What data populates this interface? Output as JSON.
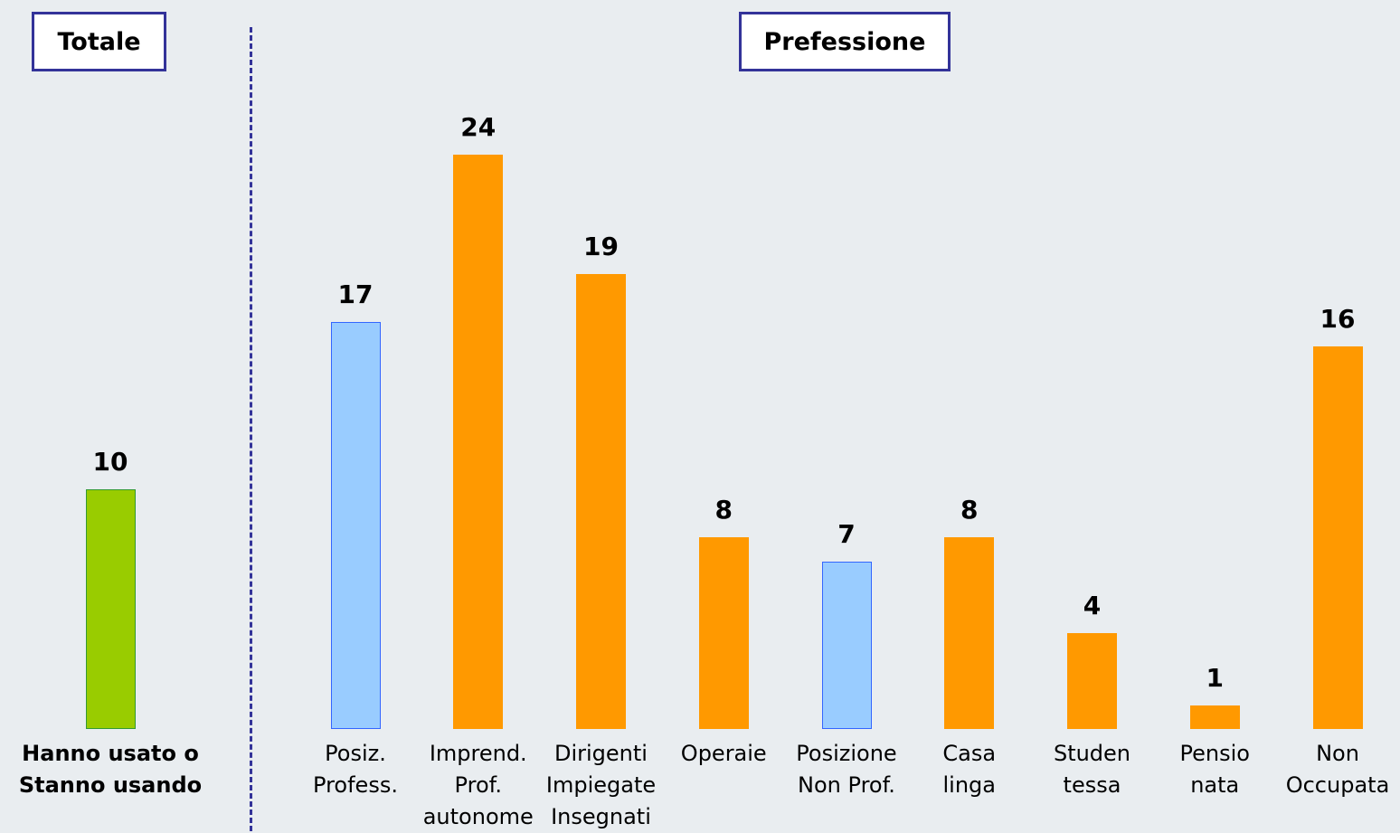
{
  "chart_data": [
    {
      "type": "bar",
      "title": "Totale",
      "categories": [
        "Hanno usato o\nStanno usando"
      ],
      "values": [
        10
      ],
      "colors": [
        "#99cc00"
      ],
      "border_colors": [
        "#339933"
      ]
    },
    {
      "type": "bar",
      "title": "Prefessione",
      "categories": [
        "Posiz.\nProfess.",
        "Imprend.\nProf.\nautonome",
        "Dirigenti\nImpiegate\nInsegnati",
        "Operaie",
        "Posizione\nNon Prof.",
        "Casa\nlinga",
        "Studen\ntessa",
        "Pensio\nnata",
        "Non\nOccupata"
      ],
      "values": [
        17,
        24,
        19,
        8,
        7,
        8,
        4,
        1,
        16
      ],
      "colors": [
        "#99ccff",
        "#ff9900",
        "#ff9900",
        "#ff9900",
        "#99ccff",
        "#ff9900",
        "#ff9900",
        "#ff9900",
        "#ff9900"
      ],
      "border_colors": [
        "#3366ff",
        "#ff9900",
        "#ff9900",
        "#ff9900",
        "#3366ff",
        "#ff9900",
        "#ff9900",
        "#ff9900",
        "#ff9900"
      ]
    }
  ]
}
